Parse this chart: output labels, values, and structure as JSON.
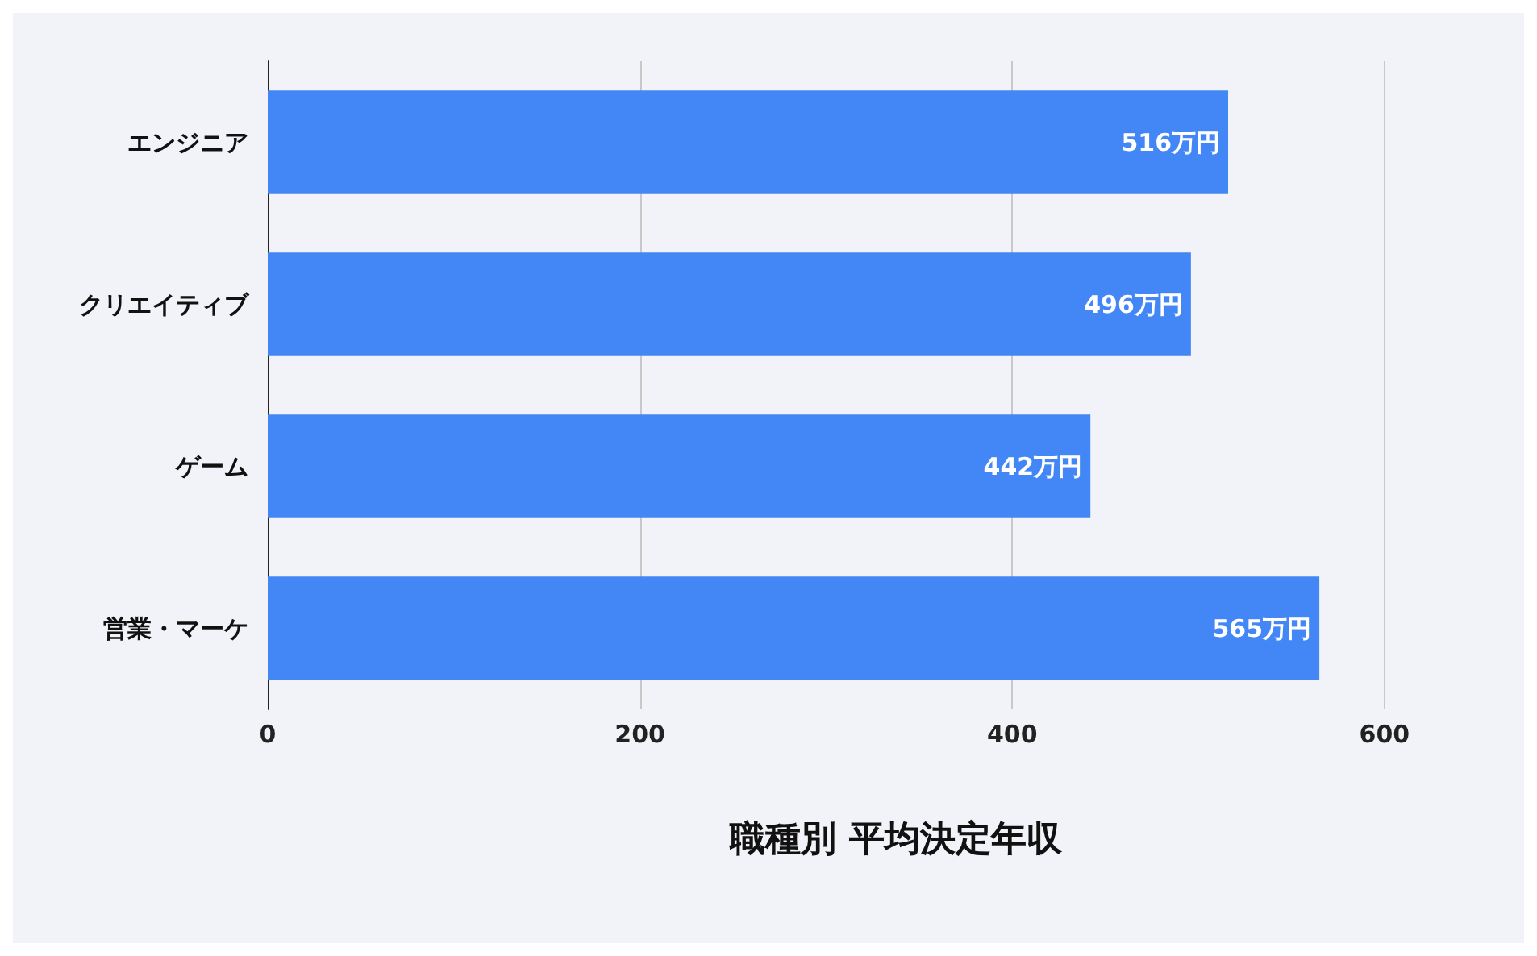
{
  "chart_data": {
    "type": "bar",
    "orientation": "horizontal",
    "xlabel": "職種別 平均決定年収",
    "categories": [
      "エンジニア",
      "クリエイティブ",
      "ゲーム",
      "営業・マーケ"
    ],
    "values": [
      516,
      496,
      442,
      565
    ],
    "value_labels": [
      "516万円",
      "496万円",
      "442万円",
      "565万円"
    ],
    "color": "#4287f5",
    "xlim": [
      0,
      675
    ],
    "xticks": [
      0,
      200,
      400,
      600
    ],
    "grid": "x"
  }
}
